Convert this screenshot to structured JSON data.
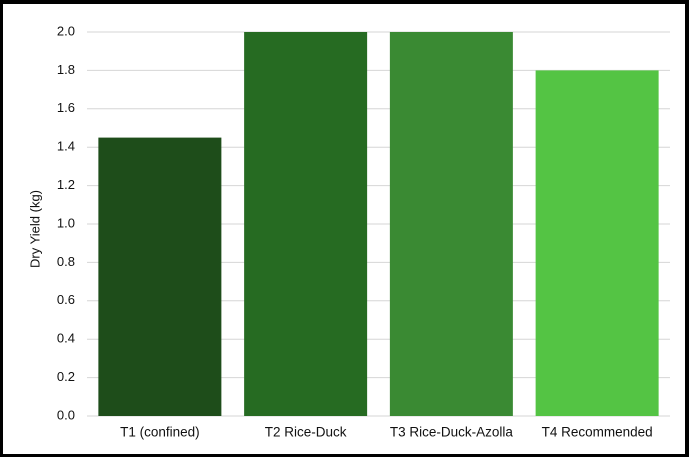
{
  "chart_data": {
    "type": "bar",
    "title": "",
    "xlabel": "",
    "ylabel": "Dry Yield (kg)",
    "ylim": [
      0,
      2.0
    ],
    "yticks": [
      "0.0",
      "0.2",
      "0.4",
      "0.6",
      "0.8",
      "1.0",
      "1.2",
      "1.4",
      "1.6",
      "1.8",
      "2.0"
    ],
    "grid": true,
    "categories": [
      "T1 (confined)",
      "T2 Rice-Duck",
      "T3 Rice-Duck-Azolla",
      "T4 Recommended"
    ],
    "values": [
      1.45,
      2.0,
      2.0,
      1.8
    ],
    "colors": [
      "#1e4d1a",
      "#266b22",
      "#3a8a33",
      "#54c444"
    ]
  }
}
